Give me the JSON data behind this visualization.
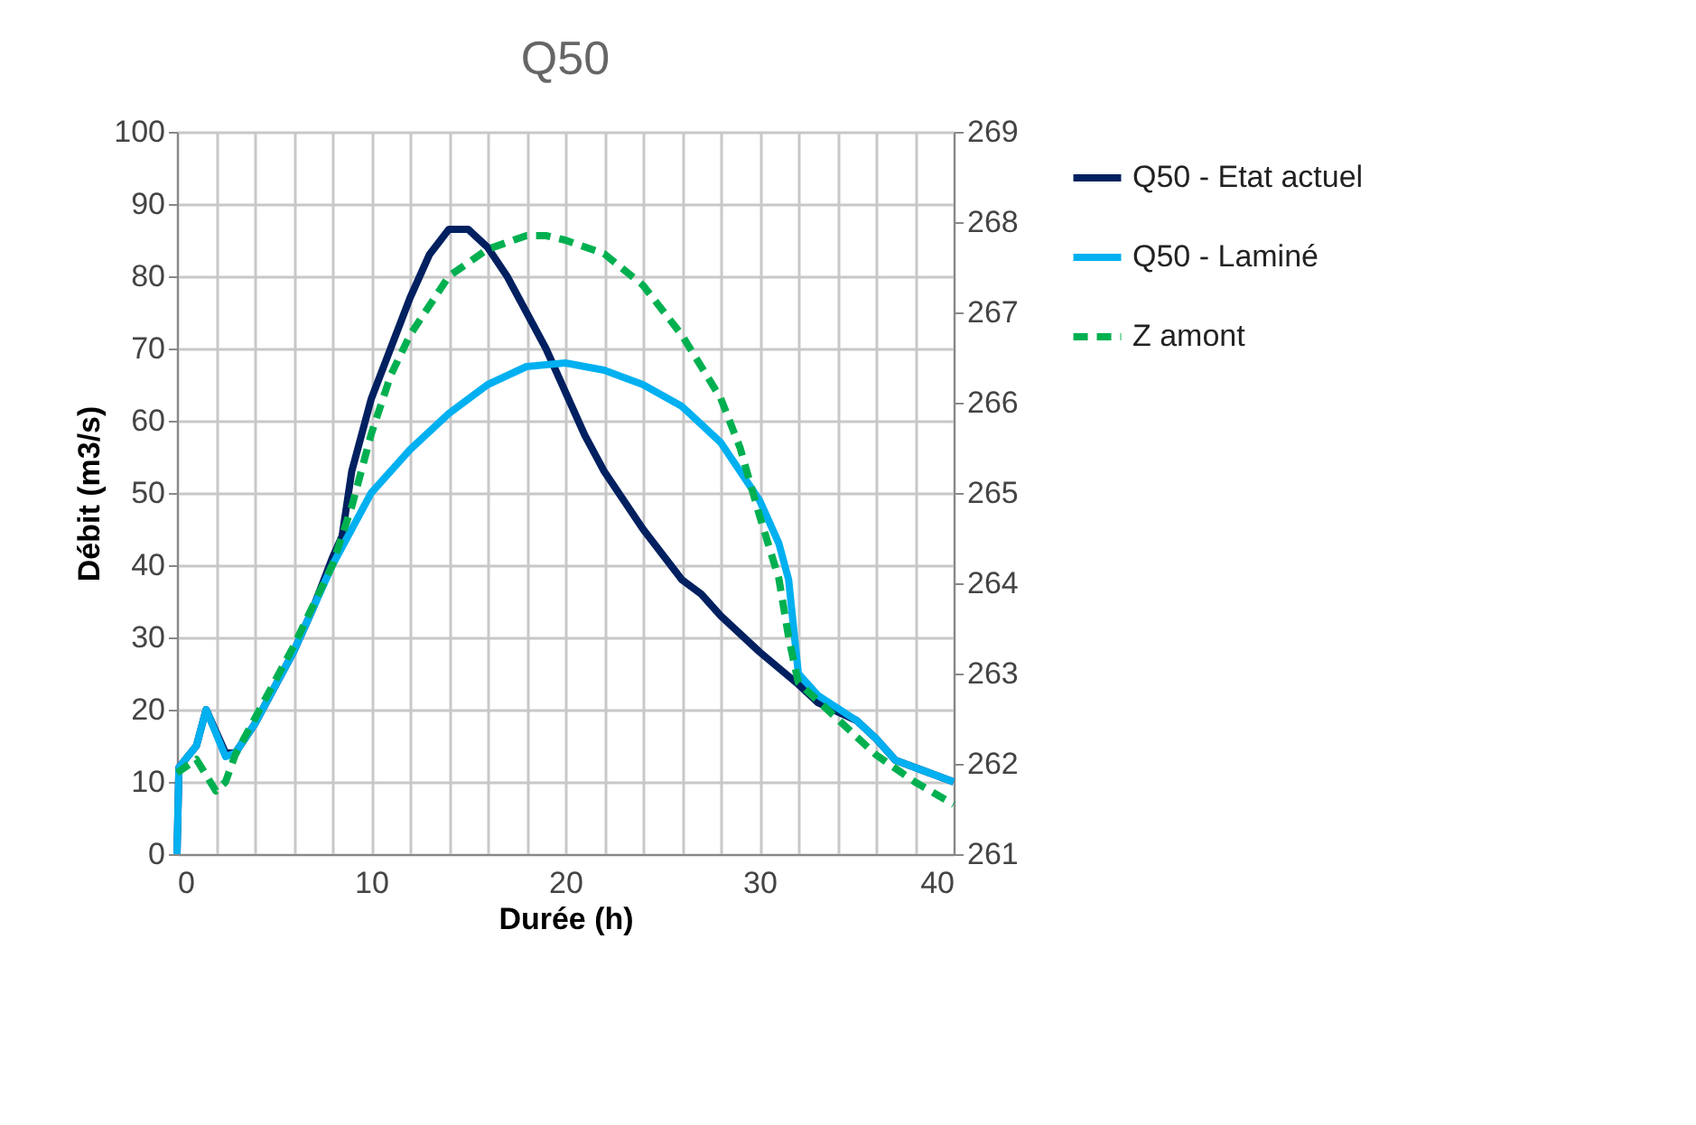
{
  "chart_data": {
    "type": "line",
    "title": "Q50",
    "xlabel": "Durée (h)",
    "ylabel": "Débit (m3/s)",
    "xlim": [
      0,
      40
    ],
    "xticks": [
      0,
      {
        "value": 2,
        "label": null
      },
      {
        "value": 4,
        "label": null
      },
      {
        "value": 6,
        "label": null
      },
      {
        "value": 8,
        "label": null
      },
      10,
      {
        "value": 12,
        "label": null
      },
      {
        "value": 14,
        "label": null
      },
      {
        "value": 16,
        "label": null
      },
      {
        "value": 18,
        "label": null
      },
      20,
      {
        "value": 22,
        "label": null
      },
      {
        "value": 24,
        "label": null
      },
      {
        "value": 26,
        "label": null
      },
      {
        "value": 28,
        "label": null
      },
      30,
      {
        "value": 32,
        "label": null
      },
      {
        "value": 34,
        "label": null
      },
      {
        "value": 36,
        "label": null
      },
      {
        "value": 38,
        "label": null
      },
      40
    ],
    "ylim": [
      0,
      100
    ],
    "yticks": [
      0,
      10,
      20,
      30,
      40,
      50,
      60,
      70,
      80,
      90,
      100
    ],
    "y2lim": [
      261,
      269
    ],
    "y2ticks": [
      261,
      262,
      263,
      264,
      265,
      266,
      267,
      268,
      269
    ],
    "grid": true,
    "legend": "right",
    "series": [
      {
        "name": "Q50 - Etat actuel",
        "color": "#002060",
        "line_style": "solid",
        "x": [
          0,
          0.1,
          1,
          1.5,
          2.5,
          3,
          4,
          5,
          6,
          7,
          8,
          8.5,
          9,
          10,
          11,
          12,
          13,
          14,
          15,
          16,
          17,
          18,
          19,
          20,
          21,
          22,
          24,
          26,
          27,
          28,
          30,
          32,
          33,
          35,
          36,
          37,
          38,
          40
        ],
        "values": [
          0,
          12,
          15,
          20,
          14,
          14,
          18,
          23,
          28,
          34,
          41,
          44,
          53,
          63,
          70,
          77,
          83,
          86.5,
          86.5,
          84,
          80,
          75,
          70,
          64,
          58,
          53,
          45,
          38,
          36,
          33,
          28,
          23.5,
          21,
          18.5,
          16,
          13,
          12,
          10
        ]
      },
      {
        "name": "Q50 - Laminé",
        "color": "#00b0f0",
        "line_style": "solid",
        "x": [
          0,
          0.1,
          1,
          1.5,
          2.5,
          3,
          4,
          5,
          6,
          7,
          8,
          9,
          10,
          12,
          14,
          16,
          18,
          20,
          22,
          24,
          26,
          28,
          30,
          31,
          31.5,
          32,
          33,
          35,
          36,
          37,
          38,
          40
        ],
        "values": [
          0,
          12,
          15,
          20,
          13.5,
          14,
          18,
          23,
          28,
          34,
          40,
          45,
          50,
          56,
          61,
          65,
          67.5,
          68,
          67,
          65,
          62,
          57,
          49,
          43,
          38,
          25,
          22,
          18.5,
          16,
          13,
          12,
          10
        ]
      },
      {
        "name": "Z amont",
        "color": "#00b050",
        "line_style": "dashed",
        "axis": "y2",
        "x": [
          0,
          1,
          2,
          2.5,
          3,
          4,
          6,
          8,
          9,
          10,
          11,
          12,
          14,
          16,
          18,
          19,
          20,
          22,
          24,
          26,
          28,
          29,
          30,
          31,
          31.5,
          32,
          34,
          36,
          38,
          40
        ],
        "values": [
          261.9,
          262.05,
          261.7,
          261.8,
          262.1,
          262.5,
          263.3,
          264.2,
          264.85,
          265.65,
          266.3,
          266.75,
          267.4,
          267.7,
          267.85,
          267.85,
          267.8,
          267.65,
          267.3,
          266.75,
          266.05,
          265.5,
          264.75,
          264.05,
          263.4,
          262.9,
          262.5,
          262.1,
          261.8,
          261.55
        ]
      }
    ]
  }
}
